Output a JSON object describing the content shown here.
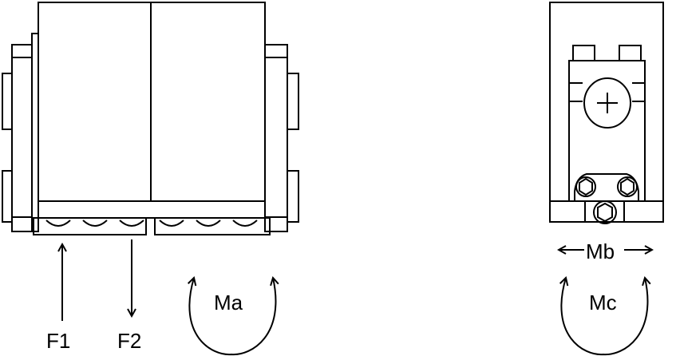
{
  "colors": {
    "line": "#000000",
    "background": "#ffffff"
  },
  "labels": {
    "force_1": "F1",
    "force_2": "F2",
    "moment_a": "Ma",
    "moment_b": "Mb",
    "moment_c": "Mc"
  }
}
